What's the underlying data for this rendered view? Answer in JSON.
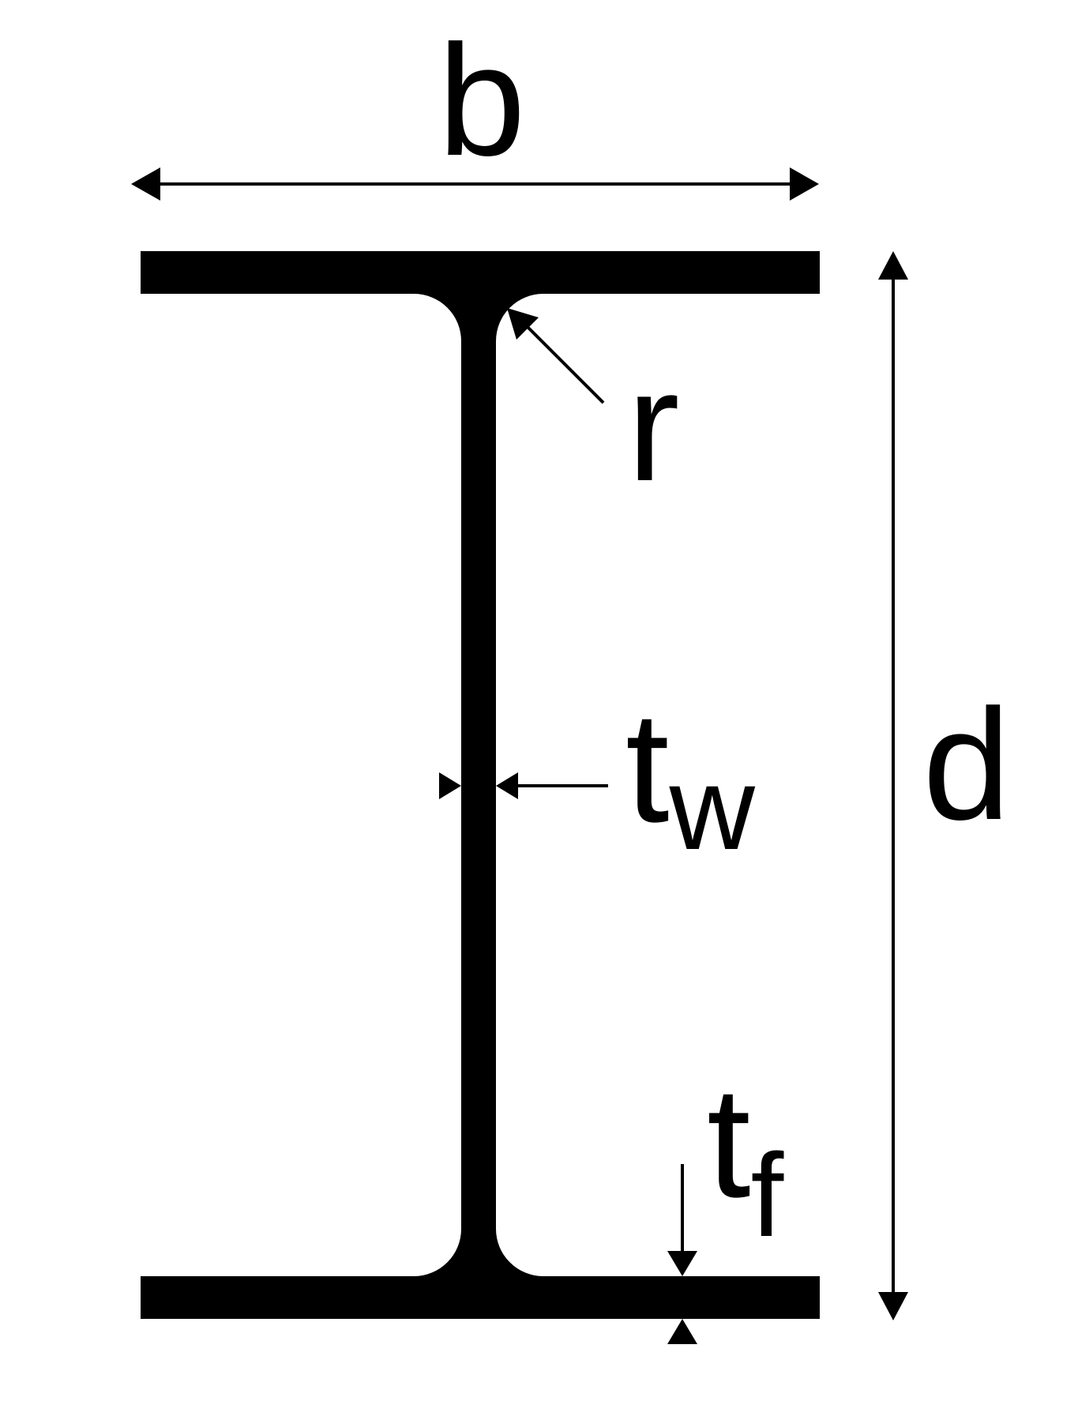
{
  "labels": {
    "width": "b",
    "depth": "d",
    "root_radius": "r",
    "web_thickness": {
      "main": "t",
      "sub": "w"
    },
    "flange_thickness": {
      "main": "t",
      "sub": "f"
    }
  },
  "colors": {
    "shape": "#000000",
    "background": "#ffffff"
  }
}
